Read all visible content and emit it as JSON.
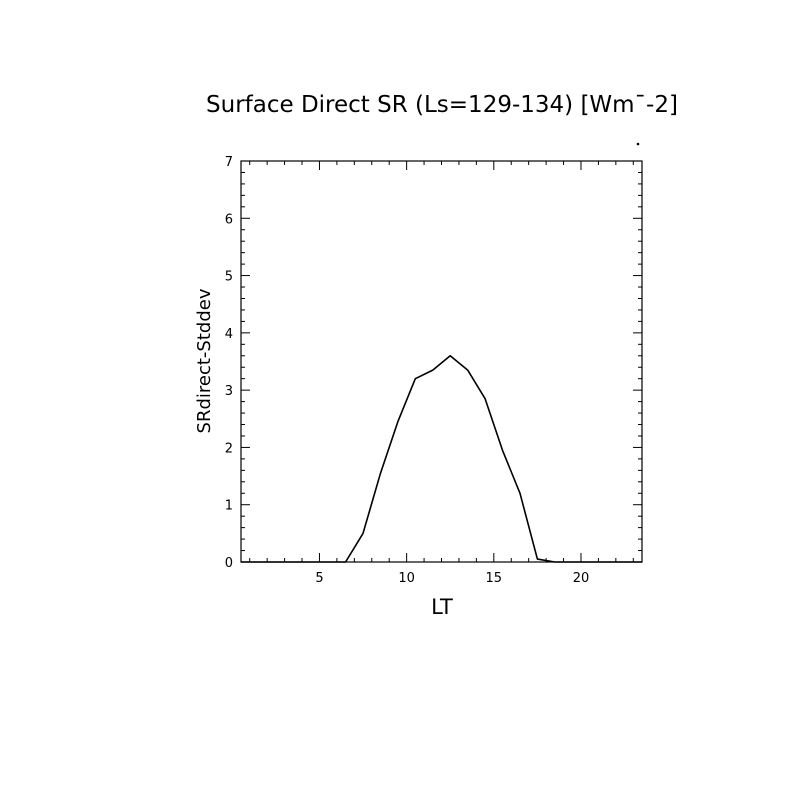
{
  "chart_data": {
    "type": "line",
    "title": "Surface Direct SR (Ls=129-134) [Wm¯-2]",
    "xlabel": "LT",
    "ylabel": "SRdirect-Stddev",
    "xlim": [
      0.5,
      23.5
    ],
    "ylim": [
      0,
      7
    ],
    "xticks": [
      5,
      10,
      15,
      20
    ],
    "yticks": [
      0,
      1,
      2,
      3,
      4,
      5,
      6,
      7
    ],
    "grid": false,
    "series": [
      {
        "x": [
          0.5,
          1.5,
          2.5,
          3.5,
          4.5,
          5.5,
          6.5,
          7.5,
          8.5,
          9.5,
          10.5,
          11.5,
          12.5,
          13.5,
          14.5,
          15.5,
          16.5,
          17.5,
          18.5,
          19.5,
          20.5,
          21.5,
          22.5,
          23.5
        ],
        "values": [
          0,
          0,
          0,
          0,
          0,
          0,
          0,
          0.5,
          1.55,
          2.45,
          3.2,
          3.35,
          3.6,
          3.35,
          2.85,
          1.95,
          1.2,
          0.05,
          0,
          0,
          0,
          0,
          0,
          0
        ]
      }
    ]
  }
}
